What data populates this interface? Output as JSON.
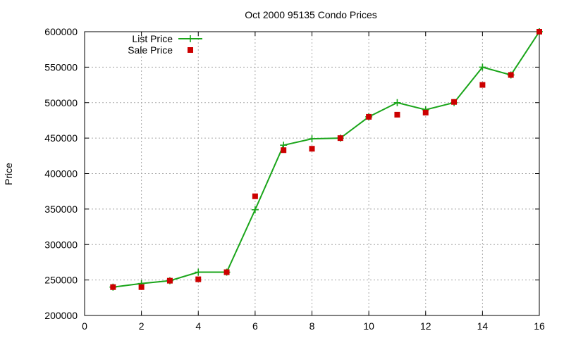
{
  "chart_data": {
    "type": "line",
    "title": "Oct 2000 95135 Condo Prices",
    "xlabel": "",
    "ylabel": "Price",
    "xlim": [
      0,
      16
    ],
    "ylim": [
      200000,
      600000
    ],
    "xticks": [
      0,
      2,
      4,
      6,
      8,
      10,
      12,
      14,
      16
    ],
    "yticks": [
      200000,
      250000,
      300000,
      350000,
      400000,
      450000,
      500000,
      550000,
      600000
    ],
    "grid": true,
    "legend_position": "top-left",
    "series": [
      {
        "name": "List Price",
        "style": "line-with-plus-markers",
        "color": "#1aa51a",
        "x": [
          1,
          2,
          3,
          4,
          5,
          6,
          7,
          8,
          9,
          10,
          11,
          12,
          13,
          14,
          15,
          16
        ],
        "y": [
          240000,
          245000,
          249000,
          261000,
          261000,
          349000,
          440000,
          449000,
          450000,
          480000,
          500000,
          490000,
          500000,
          550000,
          539000,
          600000
        ]
      },
      {
        "name": "Sale Price",
        "style": "square-points",
        "color": "#cc0000",
        "x": [
          1,
          2,
          3,
          4,
          5,
          6,
          7,
          8,
          9,
          10,
          11,
          12,
          13,
          14,
          15,
          16
        ],
        "y": [
          240000,
          240000,
          249000,
          251000,
          261000,
          368000,
          433000,
          435000,
          450000,
          480000,
          483000,
          486000,
          501000,
          525000,
          539000,
          600000
        ]
      }
    ]
  }
}
